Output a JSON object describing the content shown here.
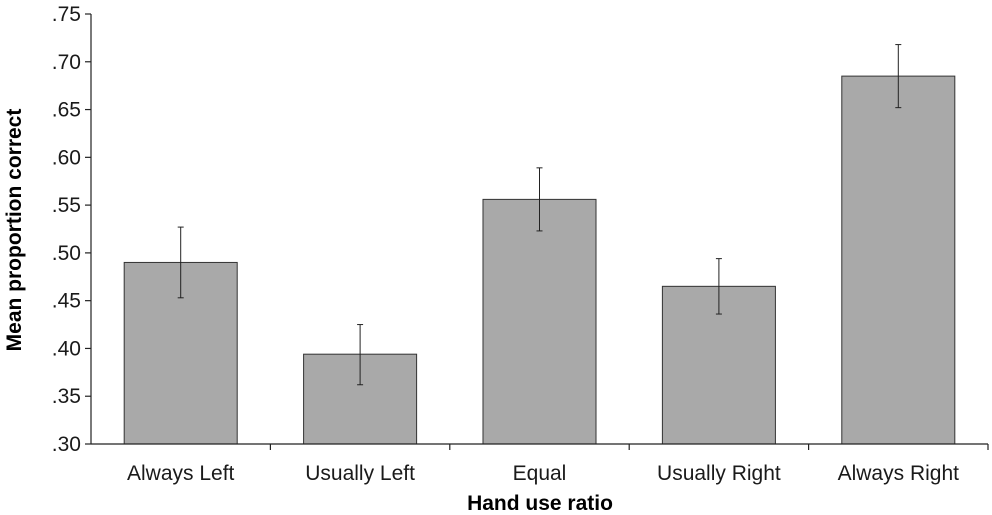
{
  "chart_data": {
    "type": "bar",
    "categories": [
      "Always Left",
      "Usually Left",
      "Equal",
      "Usually Right",
      "Always Right"
    ],
    "values": [
      0.49,
      0.394,
      0.556,
      0.465,
      0.685
    ],
    "error_low": [
      0.453,
      0.362,
      0.523,
      0.436,
      0.652
    ],
    "error_high": [
      0.527,
      0.425,
      0.589,
      0.494,
      0.718
    ],
    "xlabel": "Hand use ratio",
    "ylabel": "Mean proportion correct",
    "ylim": [
      0.3,
      0.75
    ],
    "yticks": [
      0.3,
      0.35,
      0.4,
      0.45,
      0.5,
      0.55,
      0.6,
      0.65,
      0.7,
      0.75
    ],
    "ytick_labels": [
      ".30",
      ".35",
      ".40",
      ".45",
      ".50",
      ".55",
      ".60",
      ".65",
      ".70",
      ".75"
    ],
    "bar_color": "#a9a9a9",
    "bar_edge_color": "#333333",
    "grid": false,
    "legend": false
  }
}
